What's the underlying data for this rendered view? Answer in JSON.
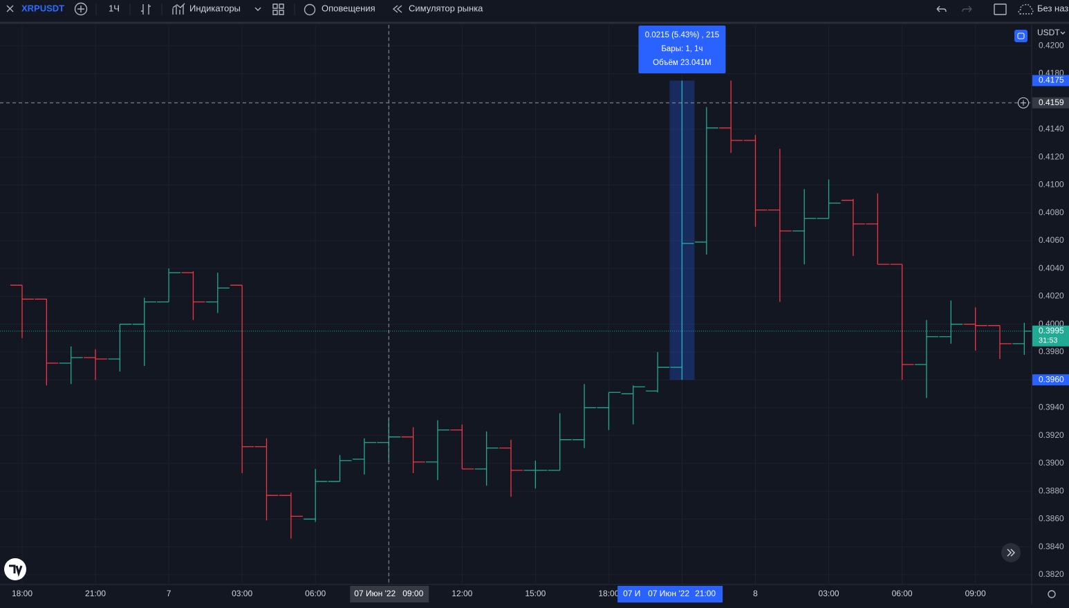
{
  "toolbar": {
    "symbol": "XRPUSDT",
    "interval": "1Ч",
    "indicators": "Индикаторы",
    "alerts": "Оповещения",
    "replay": "Симулятор рынка",
    "layout_name": "Без наз"
  },
  "chart_data": {
    "type": "ohlc",
    "currency": "USDT",
    "categories": [
      "18:00",
      null,
      null,
      "21:00",
      null,
      null,
      "7",
      null,
      null,
      "03:00",
      null,
      null,
      "06:00",
      null,
      null,
      null,
      null,
      null,
      "12:00",
      null,
      null,
      "15:00",
      null,
      null,
      "18:00",
      null,
      null,
      null,
      null,
      null,
      "8",
      null,
      null,
      "03:00",
      null,
      null,
      "06:00",
      null,
      null,
      "09:00",
      null,
      null
    ],
    "open": [
      0.4028,
      0.4018,
      0.3972,
      0.3976,
      0.3975,
      0.4,
      0.4016,
      0.4037,
      0.4016,
      0.4028,
      0.3912,
      0.3877,
      0.386,
      0.3887,
      0.3903,
      0.3915,
      0.3919,
      0.3901,
      0.3924,
      0.3896,
      0.3911,
      0.3895,
      0.3895,
      0.3917,
      0.394,
      0.395,
      0.3952,
      0.3969,
      0.4059,
      0.4141,
      0.4132,
      0.4082,
      0.4067,
      0.4076,
      0.4089,
      0.4072,
      0.4043,
      0.3971,
      0.3991,
      0.4,
      0.3999,
      0.3986
    ],
    "high": [
      0.4028,
      0.4018,
      0.3984,
      0.3982,
      0.4,
      0.4019,
      0.404,
      0.4038,
      0.4037,
      0.4028,
      0.3918,
      0.3879,
      0.3896,
      0.3906,
      0.3918,
      0.3932,
      0.3926,
      0.3931,
      0.3928,
      0.3923,
      0.3917,
      0.3902,
      0.3936,
      0.3957,
      0.3951,
      0.3956,
      0.398,
      0.4175,
      0.4156,
      0.4175,
      0.4136,
      0.4126,
      0.4097,
      0.4104,
      0.409,
      0.4094,
      0.4043,
      0.4003,
      0.4017,
      0.4012,
      0.3999,
      0.4001
    ],
    "low": [
      0.399,
      0.3956,
      0.3957,
      0.396,
      0.3966,
      0.397,
      0.4016,
      0.4003,
      0.4008,
      0.3893,
      0.3859,
      0.3846,
      0.3858,
      0.3887,
      0.3892,
      0.3901,
      0.3893,
      0.3888,
      0.3896,
      0.3884,
      0.3876,
      0.3882,
      0.3895,
      0.3911,
      0.3924,
      0.3928,
      0.3951,
      0.396,
      0.405,
      0.4123,
      0.407,
      0.4016,
      0.4043,
      0.4076,
      0.4049,
      0.4043,
      0.396,
      0.3947,
      0.3986,
      0.3981,
      0.3975,
      0.3978
    ],
    "close": [
      0.4018,
      0.3972,
      0.3976,
      0.3975,
      0.4,
      0.4016,
      0.4037,
      0.4016,
      0.4026,
      0.3912,
      0.3877,
      0.3862,
      0.3887,
      0.3902,
      0.3915,
      0.3919,
      0.3901,
      0.3924,
      0.3896,
      0.3911,
      0.3895,
      0.3895,
      0.3917,
      0.394,
      0.3951,
      0.3955,
      0.3969,
      0.4058,
      0.4141,
      0.4132,
      0.4082,
      0.4067,
      0.4076,
      0.4087,
      0.4072,
      0.4043,
      0.3971,
      0.3991,
      0.4,
      0.3999,
      0.3986,
      0.3995
    ],
    "up_color": "#22ab94",
    "down_color": "#f23645",
    "ylim": [
      0.3813,
      0.4215
    ],
    "yticks": [
      {
        "value": 0.382,
        "label": "0.3820"
      },
      {
        "value": 0.384,
        "label": "0.3840"
      },
      {
        "value": 0.386,
        "label": "0.3860"
      },
      {
        "value": 0.388,
        "label": "0.3880"
      },
      {
        "value": 0.39,
        "label": "0.3900"
      },
      {
        "value": 0.392,
        "label": "0.3920"
      },
      {
        "value": 0.394,
        "label": "0.3940"
      },
      {
        "value": 0.396,
        "label": "0.3960"
      },
      {
        "value": 0.398,
        "label": "0.3980"
      },
      {
        "value": 0.4,
        "label": "0.4000"
      },
      {
        "value": 0.402,
        "label": "0.4020"
      },
      {
        "value": 0.404,
        "label": "0.4040"
      },
      {
        "value": 0.406,
        "label": "0.4060"
      },
      {
        "value": 0.408,
        "label": "0.4080"
      },
      {
        "value": 0.41,
        "label": "0.4100"
      },
      {
        "value": 0.412,
        "label": "0.4120"
      },
      {
        "value": 0.414,
        "label": "0.4140"
      },
      {
        "value": 0.416,
        "label": "0.4160"
      },
      {
        "value": 0.418,
        "label": "0.4180"
      },
      {
        "value": 0.42,
        "label": "0.4200"
      }
    ],
    "grid": true,
    "last_price": 0.3995,
    "countdown": "31:53",
    "crosshair": {
      "price": 0.4159,
      "date": "07 Июн '22",
      "time": "09:00"
    },
    "measure": {
      "high": 0.4175,
      "low": {
        "value": 0.396,
        "label": "0.3960"
      },
      "change": "0.0215 (5.43%) , 215",
      "bars": "Бары: 1, 1ч",
      "volume": "Объём 23.041M",
      "range_start": "07 И",
      "range_date": "07 Июн '22",
      "range_time": "21:00"
    }
  }
}
